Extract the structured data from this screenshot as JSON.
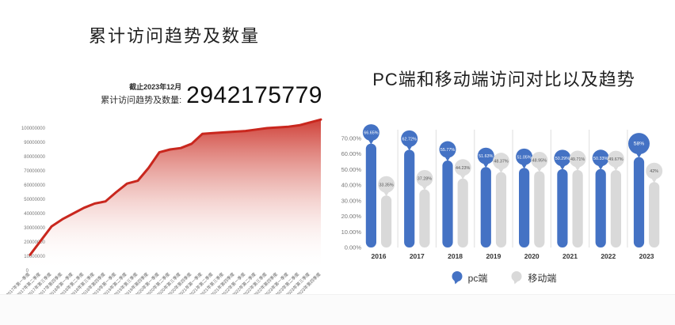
{
  "page": {
    "background": "#ffffff"
  },
  "colors": {
    "red": "#c9271e",
    "blue": "#4472c4",
    "bar_gray": "#d9d9d9",
    "bubble_gray": "#dcdcdc",
    "axis_text": "#666666",
    "separator": "#e3e3e3"
  },
  "chart_data": [
    {
      "type": "area",
      "title": "累计访问趋势及数量",
      "annotation": {
        "date": "截止2023年12月",
        "label": "累计访问趋势及数量:",
        "value": "2942175779"
      },
      "x": [
        "2017年第一季度",
        "2017年第二季度",
        "2017年第三季度",
        "2017年第四季度",
        "2018年第一季度",
        "2018年第二季度",
        "2018年第三季度",
        "2018年第四季度",
        "2019年第一季度",
        "2019年第二季度",
        "2019年第三季度",
        "2019年第四季度",
        "2020年第一季度",
        "2020年第二季度",
        "2020年第三季度",
        "2020年第四季度",
        "2021年第一季度",
        "2021年第二季度",
        "2021年第三季度",
        "2021年第四季度",
        "2022年第一季度",
        "2022年第二季度",
        "2022年第三季度",
        "2022年第四季度",
        "2023年第一季度",
        "2023年第二季度",
        "2023年第三季度",
        "2023年第四季度"
      ],
      "values": [
        11000000,
        21000000,
        31000000,
        36000000,
        40000000,
        44000000,
        47000000,
        48500000,
        55000000,
        61000000,
        63000000,
        72000000,
        83000000,
        85000000,
        86000000,
        89000000,
        96000000,
        96500000,
        97000000,
        97500000,
        98000000,
        99000000,
        100000000,
        100500000,
        101000000,
        102000000,
        104000000,
        106000000
      ],
      "y_ticks": [
        0,
        10000000,
        20000000,
        30000000,
        40000000,
        50000000,
        60000000,
        70000000,
        80000000,
        90000000,
        100000000
      ],
      "ylim": [
        0,
        110000000
      ],
      "grid": false,
      "line_color": "#c9271e"
    },
    {
      "type": "bar",
      "title": "PC端和移动端访问对比以及趋势",
      "categories": [
        "2016",
        "2017",
        "2018",
        "2019",
        "2020",
        "2021",
        "2022",
        "2023"
      ],
      "series": [
        {
          "name": "pc端",
          "color": "#4472c4",
          "values": [
            66.65,
            62.72,
            55.77,
            51.63,
            51.05,
            50.29,
            50.33,
            58
          ],
          "labels": [
            "66.65%",
            "62.72%",
            "55.77%",
            "51.63%",
            "51.05%",
            "50.29%",
            "50.33%",
            "58%"
          ]
        },
        {
          "name": "移动端",
          "color": "#d9d9d9",
          "values": [
            33.35,
            37.28,
            44.23,
            48.37,
            48.95,
            49.71,
            49.67,
            42
          ],
          "labels": [
            "33.35%",
            "37.28%",
            "44.23%",
            "48.37%",
            "48.95%",
            "49.71%",
            "49.67%",
            "42%"
          ]
        }
      ],
      "y_ticks": [
        "0.00%",
        "10.00%",
        "20.00%",
        "30.00%",
        "40.00%",
        "50.00%",
        "60.00%",
        "70.00%"
      ],
      "ylim": [
        0,
        70
      ],
      "legend_position": "bottom",
      "big_bubble_indices": [
        7
      ]
    }
  ]
}
